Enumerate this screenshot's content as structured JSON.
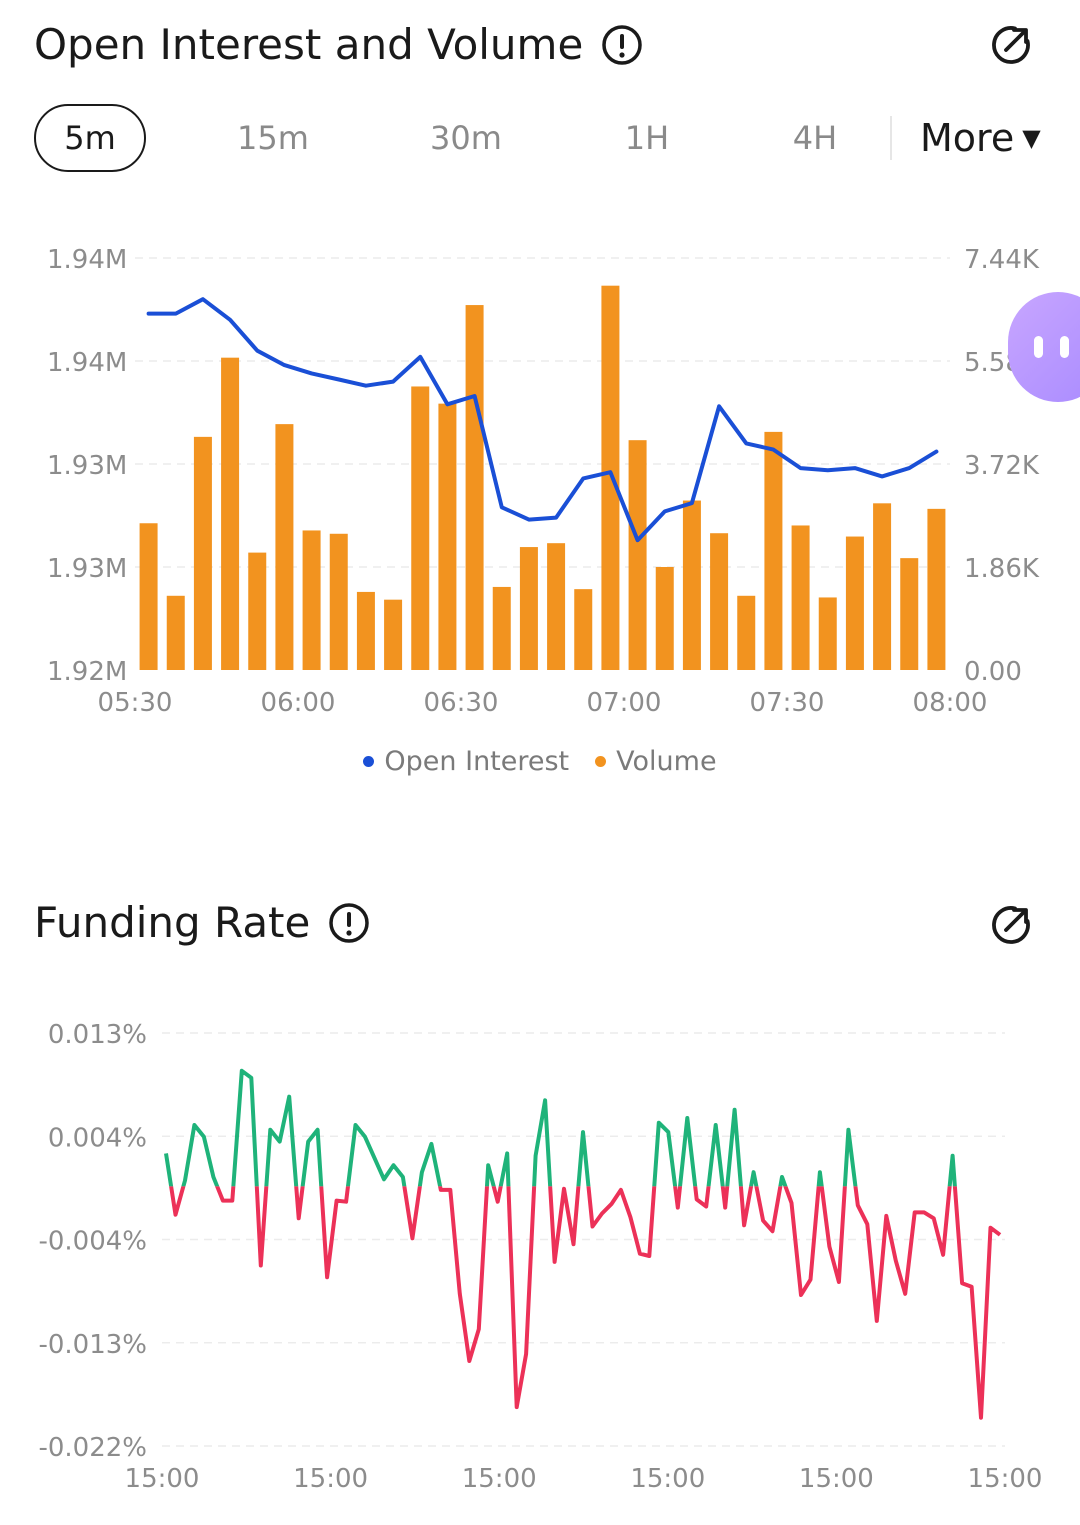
{
  "oi_section": {
    "title": "Open Interest and Volume",
    "tabs": [
      "5m",
      "15m",
      "30m",
      "1H",
      "4H"
    ],
    "active_tab": "5m",
    "more_label": "More",
    "legend": [
      "Open Interest",
      "Volume"
    ]
  },
  "fr_section": {
    "title": "Funding Rate"
  },
  "colors": {
    "oi_line": "#1a4fd6",
    "volume_bar": "#f2931f",
    "funding_positive": "#1fb37a",
    "funding_negative": "#ec3158",
    "axis_text": "#8c8c8c",
    "grid": "#ececec"
  },
  "icons": [
    "info-icon",
    "share-icon",
    "chevron-down-icon"
  ],
  "chart_data": [
    {
      "type": "bar",
      "title": "Open Interest and Volume",
      "x_ticks": [
        "05:30",
        "06:00",
        "06:30",
        "07:00",
        "07:30",
        "08:00"
      ],
      "y_left_ticks": [
        "1.94M",
        "1.94M",
        "1.93M",
        "1.93M",
        "1.92M"
      ],
      "y_right_ticks": [
        "7.44K",
        "5.58K",
        "3.72K",
        "1.86K",
        "0.00"
      ],
      "y_right_range": [
        0,
        7440
      ],
      "y_left_range": [
        1920000,
        1940000
      ],
      "grid": true,
      "legend_position": "bottom",
      "series": [
        {
          "name": "Volume",
          "type": "bar",
          "axis": "right",
          "values": [
            2650,
            1340,
            4210,
            5640,
            2120,
            4440,
            2520,
            2460,
            1410,
            1270,
            5120,
            4810,
            6590,
            1500,
            2220,
            2290,
            1460,
            6940,
            4150,
            1860,
            3060,
            2470,
            1340,
            4300,
            2610,
            1310,
            2410,
            3010,
            2020,
            2910
          ]
        },
        {
          "name": "Open Interest",
          "type": "line",
          "axis": "left",
          "values": [
            1937300,
            1937300,
            1938000,
            1937000,
            1935500,
            1934800,
            1934400,
            1934100,
            1933800,
            1934000,
            1935200,
            1932900,
            1933300,
            1927900,
            1927300,
            1927400,
            1929300,
            1929600,
            1926300,
            1927700,
            1928100,
            1932800,
            1931000,
            1930700,
            1929800,
            1929700,
            1929800,
            1929400,
            1929800,
            1930600
          ]
        }
      ]
    },
    {
      "type": "line",
      "title": "Funding Rate",
      "x_ticks": [
        "15:00",
        "15:00",
        "15:00",
        "15:00",
        "15:00",
        "15:00"
      ],
      "y_ticks": [
        "0.013%",
        "0.004%",
        "-0.004%",
        "-0.013%",
        "-0.022%"
      ],
      "y_range": [
        -0.022,
        0.013
      ],
      "grid": true,
      "series": [
        {
          "name": "Funding Rate",
          "values": [
            0.0028,
            -0.0024,
            0.0005,
            0.0052,
            0.0042,
            0.0008,
            -0.0012,
            -0.0012,
            0.0098,
            0.0092,
            -0.0067,
            0.0048,
            0.0038,
            0.0076,
            -0.0027,
            0.0038,
            0.0048,
            -0.0077,
            -0.0012,
            -0.0013,
            0.0052,
            0.0042,
            0.0024,
            0.0006,
            0.0018,
            0.0008,
            -0.0044,
            0.0012,
            0.0036,
            -0.0003,
            -0.0003,
            -0.0091,
            -0.0148,
            -0.0121,
            0.0018,
            -0.0013,
            0.0028,
            -0.0187,
            -0.0142,
            0.0026,
            0.0073,
            -0.0064,
            -0.0002,
            -0.0049,
            0.0046,
            -0.0034,
            -0.0023,
            -0.0015,
            -0.0003,
            -0.0026,
            -0.0057,
            -0.0059,
            0.0054,
            0.0046,
            -0.0018,
            0.0058,
            -0.0011,
            -0.0017,
            0.0052,
            -0.0018,
            0.0065,
            -0.0033,
            0.0012,
            -0.0029,
            -0.0038,
            0.0008,
            -0.0014,
            -0.0092,
            -0.0079,
            0.0012,
            -0.0051,
            -0.0081,
            0.0048,
            -0.0016,
            -0.0032,
            -0.0114,
            -0.0025,
            -0.0063,
            -0.0091,
            -0.0022,
            -0.0022,
            -0.0027,
            -0.0058,
            0.0026,
            -0.0082,
            -0.0085,
            -0.0196,
            -0.0035,
            -0.0041
          ]
        }
      ]
    }
  ]
}
